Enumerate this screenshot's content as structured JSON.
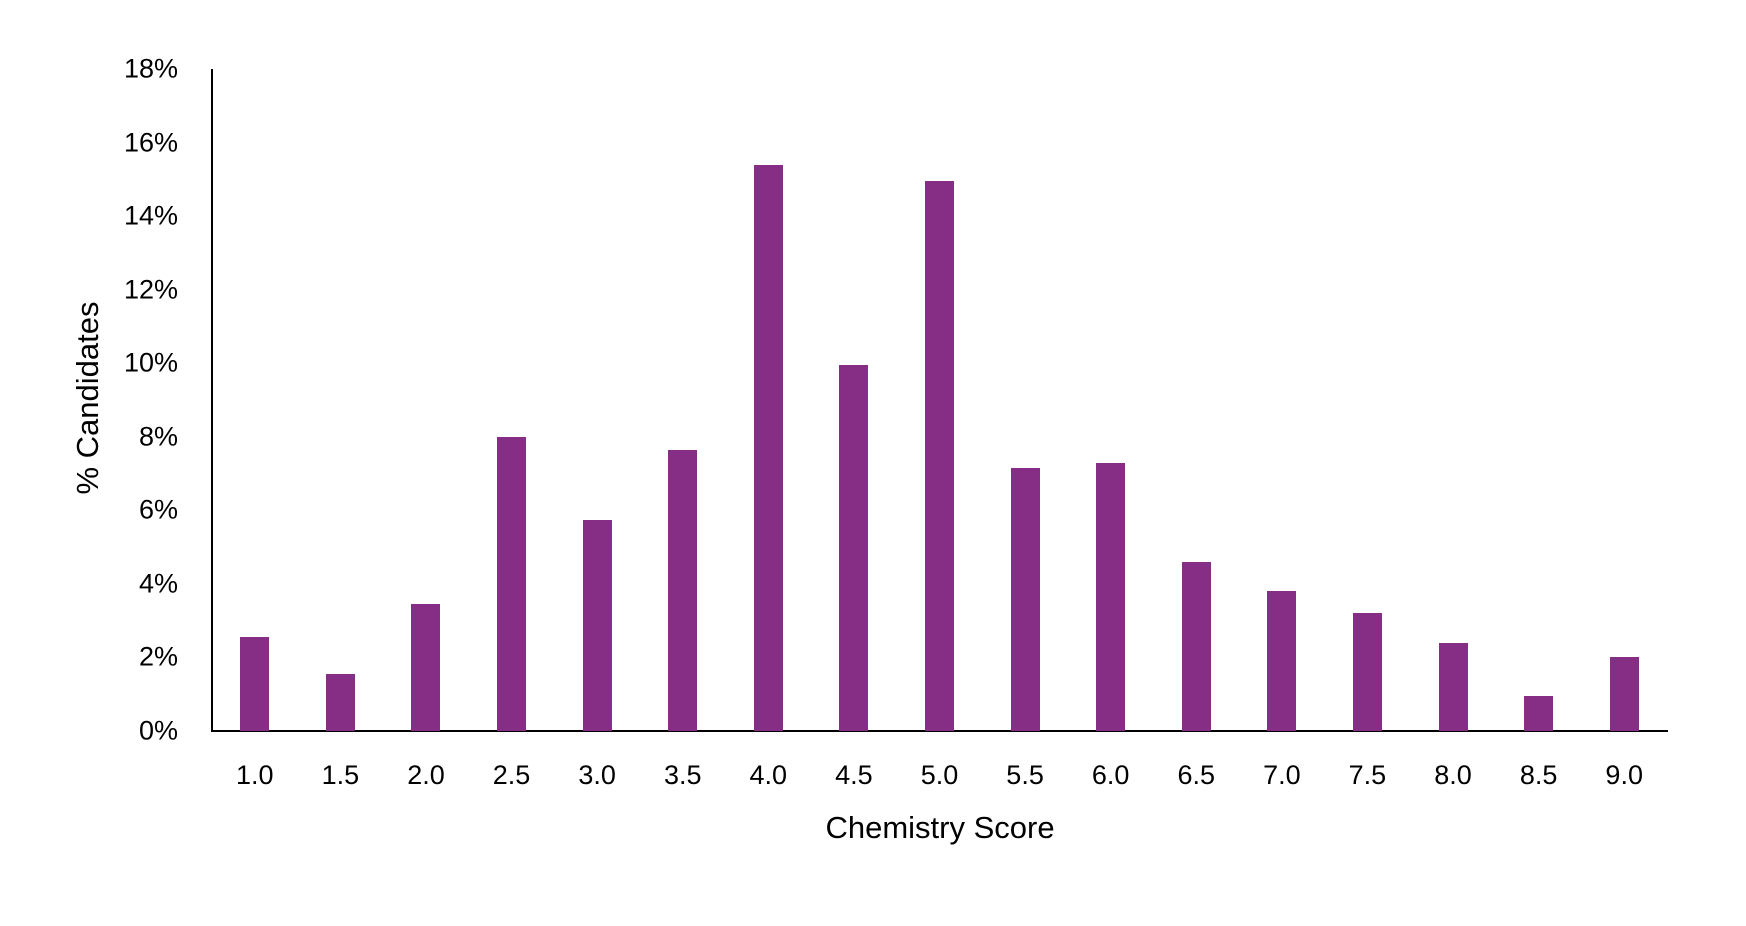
{
  "chart_data": {
    "type": "bar",
    "title": "",
    "xlabel": "Chemistry Score",
    "ylabel": "% Candidates",
    "categories": [
      "1.0",
      "1.5",
      "2.0",
      "2.5",
      "3.0",
      "3.5",
      "4.0",
      "4.5",
      "5.0",
      "5.5",
      "6.0",
      "6.5",
      "7.0",
      "7.5",
      "8.0",
      "8.5",
      "9.0"
    ],
    "values": [
      2.55,
      1.55,
      3.45,
      8.0,
      5.75,
      7.65,
      15.4,
      9.95,
      14.95,
      7.15,
      7.3,
      4.6,
      3.8,
      3.2,
      2.4,
      0.95,
      2.0
    ],
    "value_unit": "%",
    "ylim": [
      0,
      18
    ],
    "yticks": [
      "0%",
      "2%",
      "4%",
      "6%",
      "8%",
      "10%",
      "12%",
      "14%",
      "16%",
      "18%"
    ],
    "ytick_values": [
      0,
      2,
      4,
      6,
      8,
      10,
      12,
      14,
      16,
      18
    ],
    "grid": false,
    "legend": null,
    "bar_color": "#862D86"
  }
}
